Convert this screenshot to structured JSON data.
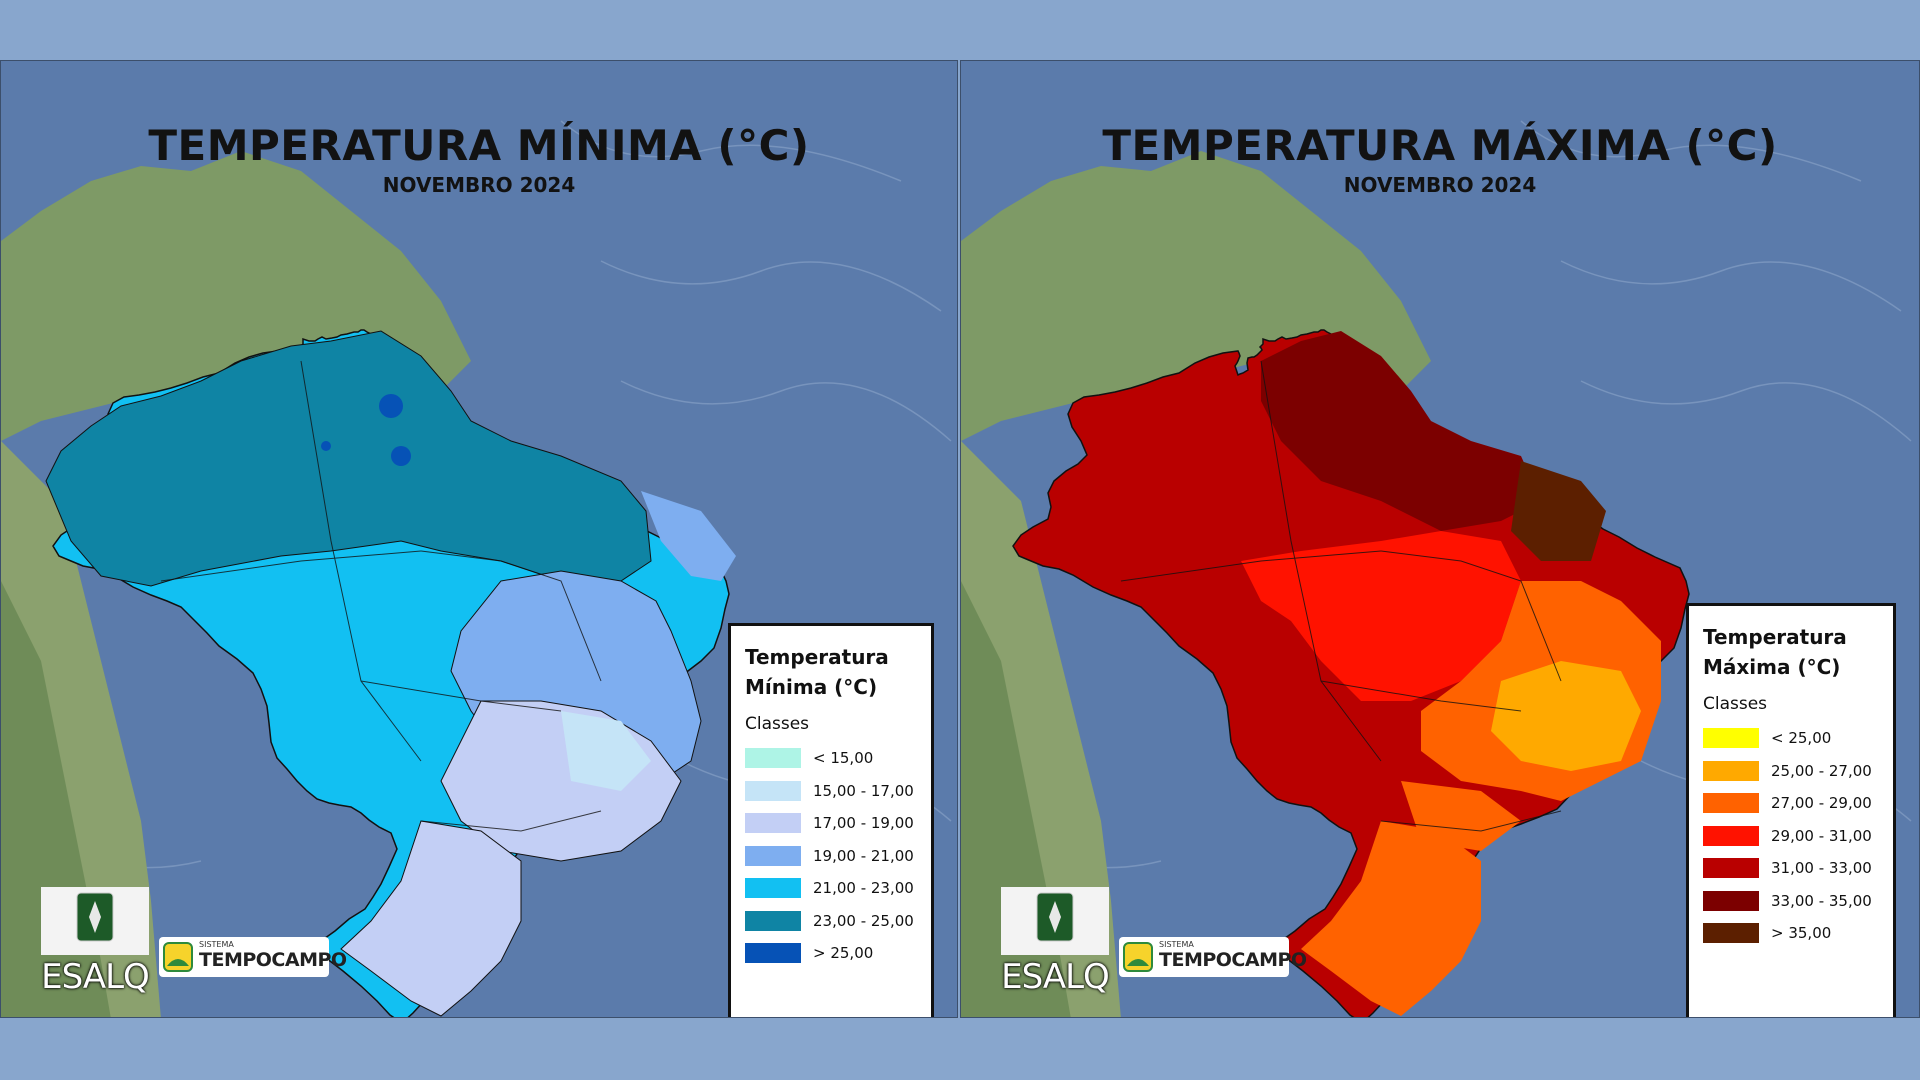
{
  "maps": [
    {
      "title": "TEMPERATURA MÍNIMA (°C)",
      "subtitle": "NOVEMBRO 2024",
      "legend_title_line1": "Temperatura",
      "legend_title_line2": "Mínima (°C)",
      "legend_classes_label": "Classes",
      "classes": [
        {
          "label": "< 15,00",
          "color": "#aef4e6"
        },
        {
          "label": "15,00 - 17,00",
          "color": "#c5e4f7"
        },
        {
          "label": "17,00 - 19,00",
          "color": "#c3cff5"
        },
        {
          "label": "19,00 - 21,00",
          "color": "#7eaef0"
        },
        {
          "label": "21,00 - 23,00",
          "color": "#12c0f2"
        },
        {
          "label": "23,00 - 25,00",
          "color": "#0f84a4"
        },
        {
          "label": "> 25,00",
          "color": "#0652b6"
        }
      ]
    },
    {
      "title": "TEMPERATURA MÁXIMA (°C)",
      "subtitle": "NOVEMBRO 2024",
      "legend_title_line1": "Temperatura",
      "legend_title_line2": "Máxima (°C)",
      "legend_classes_label": "Classes",
      "classes": [
        {
          "label": "< 25,00",
          "color": "#ffff00"
        },
        {
          "label": "25,00 - 27,00",
          "color": "#ffa900"
        },
        {
          "label": "27,00 - 29,00",
          "color": "#ff6200"
        },
        {
          "label": "29,00 - 31,00",
          "color": "#ff1200"
        },
        {
          "label": "31,00 - 33,00",
          "color": "#b90000"
        },
        {
          "label": "33,00 - 35,00",
          "color": "#7c0000"
        },
        {
          "label": "> 35,00",
          "color": "#5c1f00"
        }
      ]
    }
  ],
  "logos": {
    "esalq": "ESALQ",
    "tempocampo_small": "SISTEMA",
    "tempocampo_name": "TEMPOCAMPO"
  },
  "colors": {
    "ocean": "#5b7bab",
    "land": "#7e9a66",
    "background": "#88a6cd"
  }
}
